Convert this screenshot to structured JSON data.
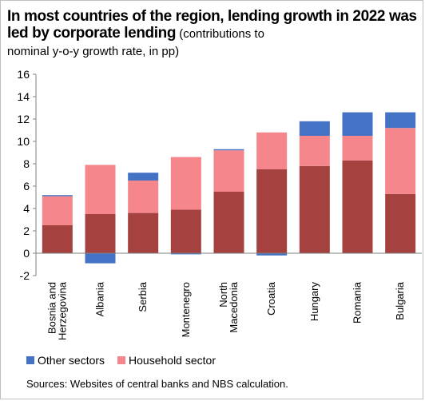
{
  "chart_data": {
    "type": "bar",
    "stacked": true,
    "title_bold": "In most countries of the region, lending growth in 2022 was led by corporate lending",
    "title_rest": " (contributions to",
    "subtitle": "nominal y-o-y growth rate, in pp)",
    "categories": [
      "Bosnia and\nHerzegovina",
      "Albania",
      "Serbia",
      "Montenegro",
      "North\nMacedonia",
      "Croatia",
      "Hungary",
      "Romania",
      "Bulgaria"
    ],
    "series": [
      {
        "name": "",
        "color": "#a5413e",
        "values": [
          2.5,
          3.5,
          3.6,
          3.9,
          5.5,
          7.5,
          7.8,
          8.3,
          5.3
        ]
      },
      {
        "name": "Household sector",
        "color": "#f4868c",
        "values": [
          2.6,
          4.4,
          2.9,
          4.7,
          3.7,
          3.3,
          2.7,
          2.2,
          5.9
        ]
      },
      {
        "name": "Other sectors",
        "color": "#4472c4",
        "values": [
          0.1,
          -0.9,
          0.7,
          -0.1,
          0.1,
          -0.2,
          1.3,
          2.1,
          1.4
        ]
      }
    ],
    "ylim": [
      -2,
      16
    ],
    "yticks": [
      -2,
      0,
      2,
      4,
      6,
      8,
      10,
      12,
      14,
      16
    ],
    "legend": [
      "Other sectors",
      "Household sector"
    ],
    "legend_colors": [
      "#4472c4",
      "#f4868c"
    ]
  },
  "source": "Sources: Websites of central banks and NBS calculation."
}
